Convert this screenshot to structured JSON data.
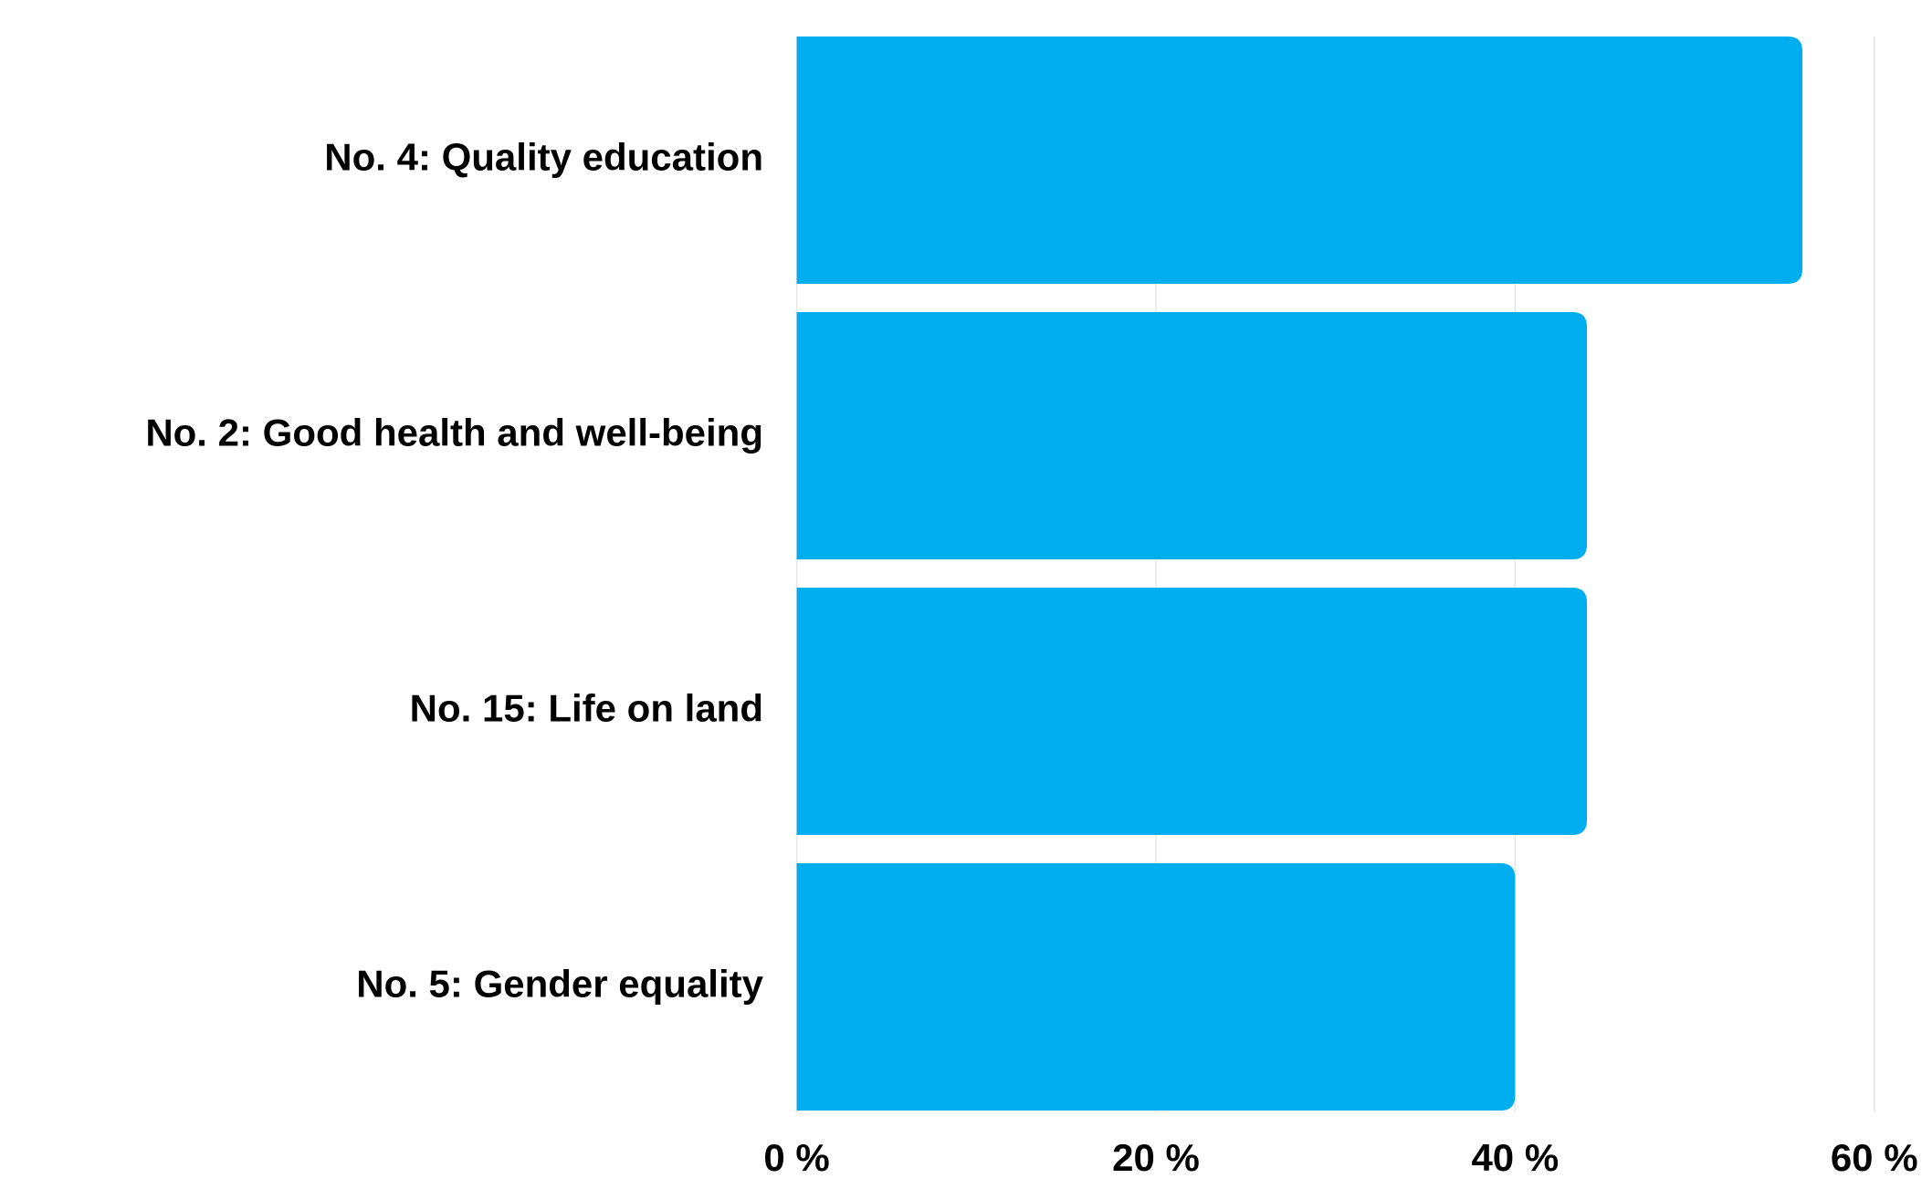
{
  "chart_data": {
    "type": "bar",
    "orientation": "horizontal",
    "categories": [
      "No. 4: Quality education",
      "No. 2: Good health and well-being",
      "No. 15: Life on land",
      "No. 5: Gender equality"
    ],
    "values": [
      56,
      44,
      44,
      40
    ],
    "color": "#00aeef",
    "xlim": [
      0,
      60
    ],
    "xticks": [
      {
        "value": 0,
        "label": "0 %"
      },
      {
        "value": 20,
        "label": "20 %"
      },
      {
        "value": 40,
        "label": "40 %"
      },
      {
        "value": 60,
        "label": "60 %"
      }
    ],
    "grid": true
  }
}
